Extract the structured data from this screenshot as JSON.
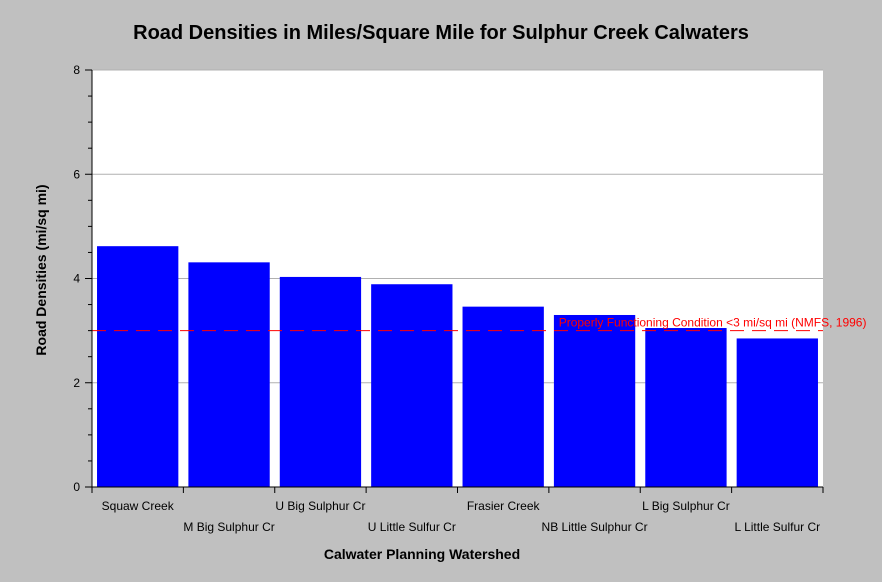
{
  "chart_data": {
    "type": "bar",
    "title": "Road Densities in Miles/Square Mile for Sulphur Creek Calwaters",
    "xlabel": "Calwater Planning Watershed",
    "ylabel": "Road Densities (mi/sq mi)",
    "categories": [
      "Squaw Creek",
      "M Big Sulphur Cr",
      "U Big Sulphur Cr",
      "U Little Sulfur Cr",
      "Frasier Creek",
      "NB Little Sulphur Cr",
      "L Big Sulphur Cr",
      "L Little Sulfur Cr"
    ],
    "values": [
      4.62,
      4.31,
      4.03,
      3.89,
      3.46,
      3.3,
      3.05,
      2.85
    ],
    "ylim": [
      0,
      8
    ],
    "yticks": [
      "0",
      "2",
      "4",
      "6",
      "8"
    ],
    "grid": true,
    "bar_color": "#0000ff",
    "plot_background": "#ffffff",
    "reference_line": {
      "value": 3,
      "label": "Properly Functioning Condition <3 mi/sq mi (NMFS, 1996)",
      "color": "#ff0000"
    }
  }
}
